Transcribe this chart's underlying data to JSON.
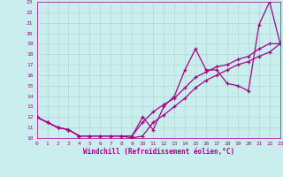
{
  "xlabel": "Windchill (Refroidissement éolien,°C)",
  "background_color": "#caeeed",
  "grid_color": "#b0d8d8",
  "line_color": "#aa0088",
  "xlim": [
    0,
    23
  ],
  "ylim": [
    10,
    23
  ],
  "xticks": [
    0,
    1,
    2,
    3,
    4,
    5,
    6,
    7,
    8,
    9,
    10,
    11,
    12,
    13,
    14,
    15,
    16,
    17,
    18,
    19,
    20,
    21,
    22,
    23
  ],
  "yticks": [
    10,
    11,
    12,
    13,
    14,
    15,
    16,
    17,
    18,
    19,
    20,
    21,
    22,
    23
  ],
  "series": [
    [
      12.0,
      11.5,
      11.0,
      10.8,
      10.2,
      10.2,
      10.2,
      10.2,
      10.2,
      10.2,
      12.0,
      10.8,
      13.0,
      14.0,
      16.5,
      18.5,
      16.5,
      16.5,
      15.2,
      15.0,
      14.5,
      20.8,
      23.0,
      19.0
    ],
    [
      12.0,
      11.5,
      11.0,
      10.8,
      10.2,
      10.2,
      10.2,
      10.2,
      10.2,
      10.0,
      10.2,
      11.5,
      12.2,
      13.0,
      13.8,
      14.8,
      15.5,
      16.0,
      16.5,
      17.0,
      17.3,
      17.8,
      18.2,
      19.0
    ],
    [
      12.0,
      11.5,
      11.0,
      10.8,
      10.2,
      10.2,
      10.2,
      10.2,
      10.2,
      10.2,
      11.5,
      12.5,
      13.2,
      13.8,
      14.8,
      15.8,
      16.3,
      16.8,
      17.0,
      17.5,
      17.8,
      18.5,
      19.0,
      19.0
    ]
  ]
}
